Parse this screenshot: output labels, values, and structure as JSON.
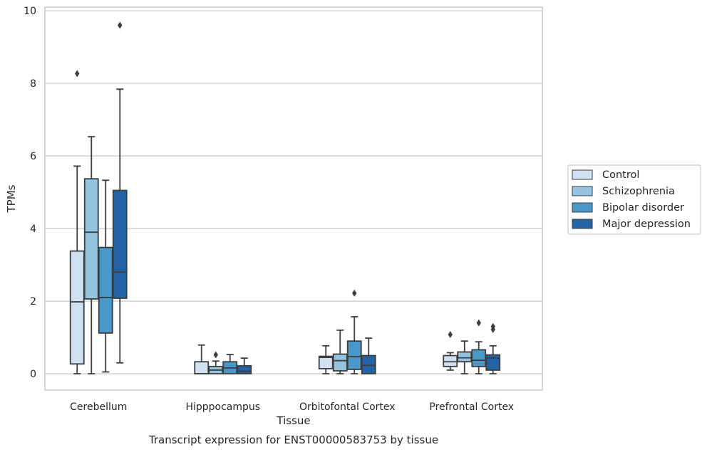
{
  "chart_data": {
    "type": "box",
    "title": "Transcript expression for ENST00000583753 by tissue",
    "xlabel": "Tissue",
    "ylabel": "TPMs",
    "ylim": [
      -0.45,
      10.1
    ],
    "yticks": [
      0,
      2,
      4,
      6,
      8,
      10
    ],
    "grid": "horizontal",
    "legend_position": "right",
    "categories": [
      "Cerebellum",
      "Hipppocampus",
      "Orbitofontal Cortex",
      "Prefrontal Cortex"
    ],
    "series": [
      {
        "name": "Control",
        "color": "#d0e1f2",
        "boxes": [
          {
            "whislo": 0.0,
            "q1": 0.27,
            "med": 1.98,
            "q3": 3.38,
            "whishi": 5.72,
            "fliers": [
              8.27
            ]
          },
          {
            "whislo": 0.0,
            "q1": 0.0,
            "med": 0.0,
            "q3": 0.33,
            "whishi": 0.79,
            "fliers": []
          },
          {
            "whislo": 0.0,
            "q1": 0.14,
            "med": 0.45,
            "q3": 0.48,
            "whishi": 0.77,
            "fliers": []
          },
          {
            "whislo": 0.1,
            "q1": 0.2,
            "med": 0.33,
            "q3": 0.5,
            "whishi": 0.58,
            "fliers": [
              1.08
            ]
          }
        ]
      },
      {
        "name": "Schizophrenia",
        "color": "#94c4df",
        "boxes": [
          {
            "whislo": 0.0,
            "q1": 2.06,
            "med": 3.9,
            "q3": 5.37,
            "whishi": 6.53,
            "fliers": []
          },
          {
            "whislo": 0.0,
            "q1": 0.0,
            "med": 0.1,
            "q3": 0.2,
            "whishi": 0.35,
            "fliers": [
              0.52
            ]
          },
          {
            "whislo": 0.0,
            "q1": 0.08,
            "med": 0.36,
            "q3": 0.54,
            "whishi": 1.2,
            "fliers": []
          },
          {
            "whislo": 0.0,
            "q1": 0.33,
            "med": 0.44,
            "q3": 0.6,
            "whishi": 0.9,
            "fliers": []
          }
        ]
      },
      {
        "name": "Bipolar disorder",
        "color": "#4a98c9",
        "boxes": [
          {
            "whislo": 0.05,
            "q1": 1.12,
            "med": 2.1,
            "q3": 3.48,
            "whishi": 5.33,
            "fliers": []
          },
          {
            "whislo": 0.0,
            "q1": 0.0,
            "med": 0.16,
            "q3": 0.33,
            "whishi": 0.53,
            "fliers": []
          },
          {
            "whislo": 0.0,
            "q1": 0.12,
            "med": 0.47,
            "q3": 0.9,
            "whishi": 1.57,
            "fliers": [
              2.22
            ]
          },
          {
            "whislo": 0.0,
            "q1": 0.2,
            "med": 0.37,
            "q3": 0.66,
            "whishi": 0.88,
            "fliers": [
              1.4
            ]
          }
        ]
      },
      {
        "name": "Major depression",
        "color": "#2464a6",
        "boxes": [
          {
            "whislo": 0.3,
            "q1": 2.08,
            "med": 2.8,
            "q3": 5.05,
            "whishi": 7.84,
            "fliers": [
              9.6
            ]
          },
          {
            "whislo": 0.0,
            "q1": 0.0,
            "med": 0.07,
            "q3": 0.22,
            "whishi": 0.43,
            "fliers": []
          },
          {
            "whislo": 0.0,
            "q1": 0.0,
            "med": 0.23,
            "q3": 0.5,
            "whishi": 0.98,
            "fliers": []
          },
          {
            "whislo": 0.0,
            "q1": 0.1,
            "med": 0.43,
            "q3": 0.52,
            "whishi": 0.77,
            "fliers": [
              1.22,
              1.3
            ]
          }
        ]
      }
    ]
  }
}
